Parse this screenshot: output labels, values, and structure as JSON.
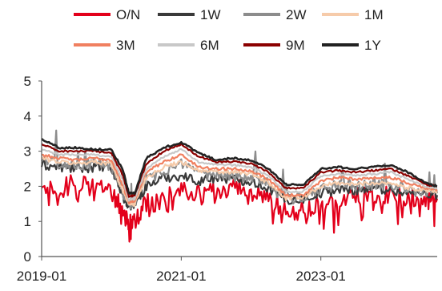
{
  "chart_data": {
    "type": "line",
    "title": "",
    "xlabel": "",
    "ylabel": "",
    "ylim": [
      0,
      5
    ],
    "y_ticks": [
      "0",
      "1",
      "2",
      "3",
      "4",
      "5"
    ],
    "x_ticks": [
      "2019-01",
      "2021-01",
      "2023-01"
    ],
    "x_domain": [
      "2019-01",
      "2024-09"
    ],
    "grid": false,
    "legend_position": "top",
    "series": [
      {
        "name": "O/N",
        "color": "#e3001b",
        "width": 2.2,
        "x": [
          "2019-01",
          "2019-04",
          "2019-07",
          "2019-10",
          "2020-01",
          "2020-03",
          "2020-04",
          "2020-05",
          "2020-07",
          "2020-10",
          "2021-01",
          "2021-04",
          "2021-07",
          "2021-10",
          "2022-01",
          "2022-04",
          "2022-07",
          "2022-10",
          "2023-01",
          "2023-04",
          "2023-07",
          "2023-10",
          "2024-01",
          "2024-04",
          "2024-07",
          "2024-09"
        ],
        "values": [
          2.25,
          1.95,
          2.2,
          1.95,
          1.8,
          1.3,
          0.9,
          1.0,
          1.5,
          1.6,
          1.95,
          1.75,
          1.9,
          1.95,
          1.9,
          1.7,
          1.25,
          1.35,
          1.5,
          1.6,
          1.75,
          1.75,
          1.75,
          1.7,
          1.7,
          1.65
        ]
      },
      {
        "name": "1W",
        "color": "#3a3a3a",
        "width": 2.2,
        "x": [
          "2019-01",
          "2019-04",
          "2019-07",
          "2019-10",
          "2020-01",
          "2020-03",
          "2020-04",
          "2020-05",
          "2020-07",
          "2020-10",
          "2021-01",
          "2021-04",
          "2021-07",
          "2021-10",
          "2022-01",
          "2022-04",
          "2022-07",
          "2022-10",
          "2023-01",
          "2023-04",
          "2023-07",
          "2023-10",
          "2024-01",
          "2024-04",
          "2024-07",
          "2024-09"
        ],
        "values": [
          2.6,
          2.55,
          2.5,
          2.55,
          2.5,
          1.7,
          1.45,
          1.5,
          2.0,
          2.25,
          2.3,
          2.15,
          2.25,
          2.2,
          2.15,
          1.95,
          1.6,
          1.65,
          1.8,
          1.9,
          1.9,
          1.95,
          1.9,
          1.8,
          1.8,
          1.75
        ]
      },
      {
        "name": "2W",
        "color": "#8c8c8c",
        "width": 2.2,
        "x": [
          "2019-01",
          "2019-04",
          "2019-07",
          "2019-10",
          "2020-01",
          "2020-03",
          "2020-04",
          "2020-05",
          "2020-07",
          "2020-10",
          "2021-01",
          "2021-04",
          "2021-07",
          "2021-10",
          "2022-01",
          "2022-04",
          "2022-07",
          "2022-10",
          "2023-01",
          "2023-04",
          "2023-07",
          "2023-10",
          "2024-01",
          "2024-04",
          "2024-07",
          "2024-09"
        ],
        "values": [
          2.75,
          2.65,
          2.6,
          2.65,
          2.6,
          1.8,
          1.5,
          1.55,
          2.2,
          2.45,
          2.6,
          2.3,
          2.35,
          2.3,
          2.3,
          2.05,
          1.65,
          1.7,
          1.9,
          2.05,
          2.0,
          2.05,
          2.0,
          1.9,
          1.85,
          1.8
        ]
      },
      {
        "name": "1M",
        "color": "#f6cbaa",
        "width": 2.2,
        "x": [
          "2019-01",
          "2019-04",
          "2019-07",
          "2019-10",
          "2020-01",
          "2020-03",
          "2020-04",
          "2020-05",
          "2020-07",
          "2020-10",
          "2021-01",
          "2021-04",
          "2021-07",
          "2021-10",
          "2022-01",
          "2022-04",
          "2022-07",
          "2022-10",
          "2023-01",
          "2023-04",
          "2023-07",
          "2023-10",
          "2024-01",
          "2024-04",
          "2024-07",
          "2024-09"
        ],
        "values": [
          2.8,
          2.7,
          2.65,
          2.7,
          2.65,
          1.85,
          1.5,
          1.5,
          2.25,
          2.55,
          2.7,
          2.45,
          2.4,
          2.4,
          2.35,
          2.1,
          1.65,
          1.7,
          2.0,
          2.1,
          2.05,
          2.1,
          2.1,
          1.95,
          1.9,
          1.85
        ]
      },
      {
        "name": "3M",
        "color": "#f08060",
        "width": 2.2,
        "x": [
          "2019-01",
          "2019-04",
          "2019-07",
          "2019-10",
          "2020-01",
          "2020-03",
          "2020-04",
          "2020-05",
          "2020-07",
          "2020-10",
          "2021-01",
          "2021-04",
          "2021-07",
          "2021-10",
          "2022-01",
          "2022-04",
          "2022-07",
          "2022-10",
          "2023-01",
          "2023-04",
          "2023-07",
          "2023-10",
          "2024-01",
          "2024-04",
          "2024-07",
          "2024-09"
        ],
        "values": [
          2.9,
          2.8,
          2.75,
          2.8,
          2.75,
          2.0,
          1.55,
          1.6,
          2.4,
          2.7,
          2.9,
          2.55,
          2.5,
          2.5,
          2.45,
          2.2,
          1.75,
          1.75,
          2.15,
          2.25,
          2.2,
          2.25,
          2.25,
          2.1,
          1.95,
          1.9
        ]
      },
      {
        "name": "6M",
        "color": "#c8c8c8",
        "width": 2.2,
        "x": [
          "2019-01",
          "2019-04",
          "2019-07",
          "2019-10",
          "2020-01",
          "2020-03",
          "2020-04",
          "2020-05",
          "2020-07",
          "2020-10",
          "2021-01",
          "2021-04",
          "2021-07",
          "2021-10",
          "2022-01",
          "2022-04",
          "2022-07",
          "2022-10",
          "2023-01",
          "2023-04",
          "2023-07",
          "2023-10",
          "2024-01",
          "2024-04",
          "2024-07",
          "2024-09"
        ],
        "values": [
          3.05,
          2.9,
          2.9,
          2.9,
          2.85,
          2.15,
          1.6,
          1.65,
          2.5,
          2.85,
          3.05,
          2.7,
          2.6,
          2.6,
          2.55,
          2.3,
          1.85,
          1.85,
          2.3,
          2.35,
          2.3,
          2.35,
          2.4,
          2.2,
          2.0,
          1.95
        ]
      },
      {
        "name": "9M",
        "color": "#8b0000",
        "width": 2.2,
        "x": [
          "2019-01",
          "2019-04",
          "2019-07",
          "2019-10",
          "2020-01",
          "2020-03",
          "2020-04",
          "2020-05",
          "2020-07",
          "2020-10",
          "2021-01",
          "2021-04",
          "2021-07",
          "2021-10",
          "2022-01",
          "2022-04",
          "2022-07",
          "2022-10",
          "2023-01",
          "2023-04",
          "2023-07",
          "2023-10",
          "2024-01",
          "2024-04",
          "2024-07",
          "2024-09"
        ],
        "values": [
          3.2,
          3.0,
          3.0,
          3.0,
          2.95,
          2.3,
          1.7,
          1.75,
          2.65,
          3.0,
          3.2,
          2.85,
          2.7,
          2.7,
          2.65,
          2.4,
          1.95,
          1.95,
          2.4,
          2.45,
          2.4,
          2.45,
          2.5,
          2.3,
          2.05,
          2.0
        ]
      },
      {
        "name": "1Y",
        "color": "#222222",
        "width": 2.6,
        "x": [
          "2019-01",
          "2019-04",
          "2019-07",
          "2019-10",
          "2020-01",
          "2020-03",
          "2020-04",
          "2020-05",
          "2020-07",
          "2020-10",
          "2021-01",
          "2021-04",
          "2021-07",
          "2021-10",
          "2022-01",
          "2022-04",
          "2022-07",
          "2022-10",
          "2023-01",
          "2023-04",
          "2023-07",
          "2023-10",
          "2024-01",
          "2024-04",
          "2024-07",
          "2024-09"
        ],
        "values": [
          3.35,
          3.1,
          3.1,
          3.05,
          3.05,
          2.45,
          1.8,
          1.8,
          2.8,
          3.1,
          3.25,
          2.95,
          2.75,
          2.8,
          2.75,
          2.5,
          2.05,
          2.05,
          2.5,
          2.55,
          2.5,
          2.55,
          2.6,
          2.4,
          2.1,
          2.0
        ]
      }
    ]
  }
}
